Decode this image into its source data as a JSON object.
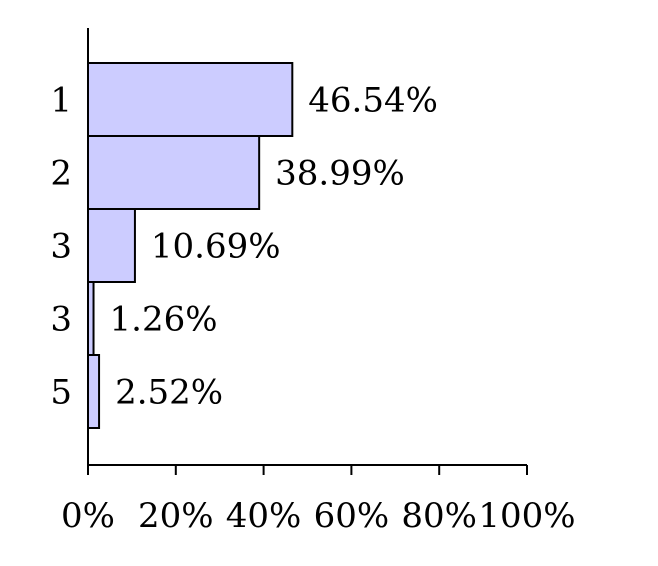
{
  "chart_data": {
    "type": "bar",
    "orientation": "horizontal",
    "categories": [
      "1",
      "2",
      "3",
      "3",
      "5"
    ],
    "values": [
      46.54,
      38.99,
      10.69,
      1.26,
      2.52
    ],
    "value_labels": [
      "46.54%",
      "38.99%",
      "10.69%",
      "1.26%",
      "2.52%"
    ],
    "xlim": [
      0,
      100
    ],
    "x_ticks": [
      0,
      20,
      40,
      60,
      80,
      100
    ],
    "x_tick_labels": [
      "0%",
      "20%",
      "40%",
      "60%",
      "80%",
      "100%"
    ],
    "title": "",
    "xlabel": "",
    "ylabel": "",
    "bar_color": "#ccccff",
    "grid": false
  }
}
